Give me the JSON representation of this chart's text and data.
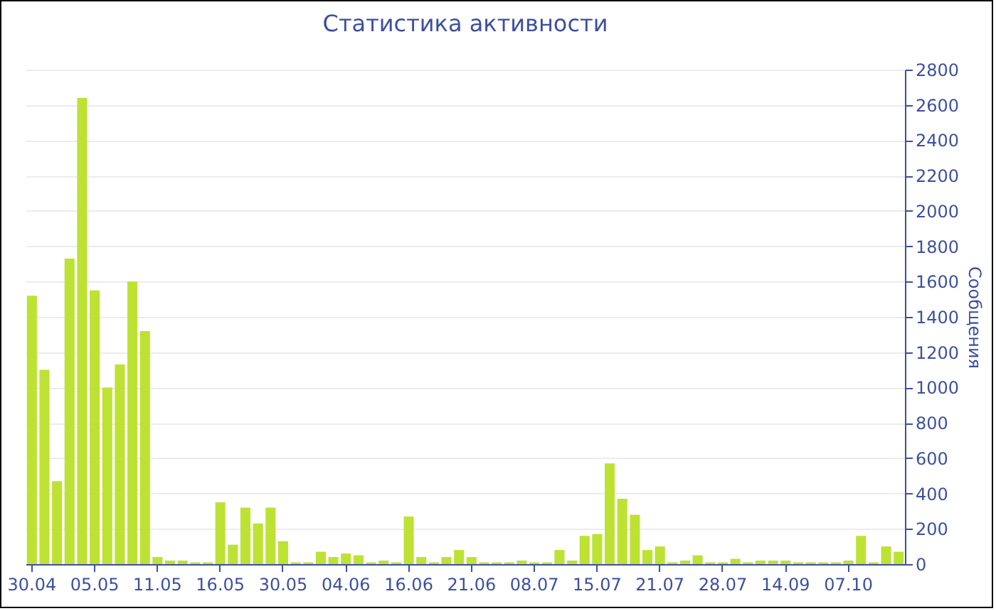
{
  "chart_data": {
    "type": "bar",
    "title": "Статистика активности",
    "ylabel": "Сообщения",
    "categories": [
      "30.04",
      null,
      null,
      null,
      null,
      "05.05",
      null,
      null,
      null,
      null,
      "11.05",
      null,
      null,
      null,
      null,
      "16.05",
      null,
      null,
      null,
      null,
      "30.05",
      null,
      null,
      null,
      null,
      "04.06",
      null,
      null,
      null,
      null,
      "16.06",
      null,
      null,
      null,
      null,
      "21.06",
      null,
      null,
      null,
      null,
      "08.07",
      null,
      null,
      null,
      null,
      "15.07",
      null,
      null,
      null,
      null,
      "21.07",
      null,
      null,
      null,
      null,
      "28.07",
      null,
      null,
      null,
      null,
      "14.09",
      null,
      null,
      null,
      null,
      "07.10",
      null,
      null,
      null,
      null
    ],
    "values": [
      1520,
      1100,
      470,
      1730,
      2640,
      1550,
      1000,
      1130,
      1600,
      1320,
      40,
      20,
      20,
      10,
      10,
      350,
      110,
      320,
      230,
      320,
      130,
      10,
      10,
      70,
      40,
      60,
      50,
      10,
      20,
      10,
      270,
      40,
      10,
      40,
      80,
      40,
      10,
      10,
      10,
      20,
      10,
      10,
      80,
      20,
      160,
      170,
      570,
      370,
      280,
      80,
      100,
      10,
      20,
      50,
      10,
      10,
      30,
      10,
      20,
      20,
      20,
      10,
      10,
      10,
      10,
      20,
      160,
      10,
      100,
      70
    ],
    "color": "#bde234",
    "ylim": [
      0,
      2800
    ],
    "yticks": [
      0,
      200,
      400,
      600,
      800,
      1000,
      1200,
      1400,
      1600,
      1800,
      2000,
      2200,
      2400,
      2600,
      2800
    ],
    "grid": "y"
  }
}
